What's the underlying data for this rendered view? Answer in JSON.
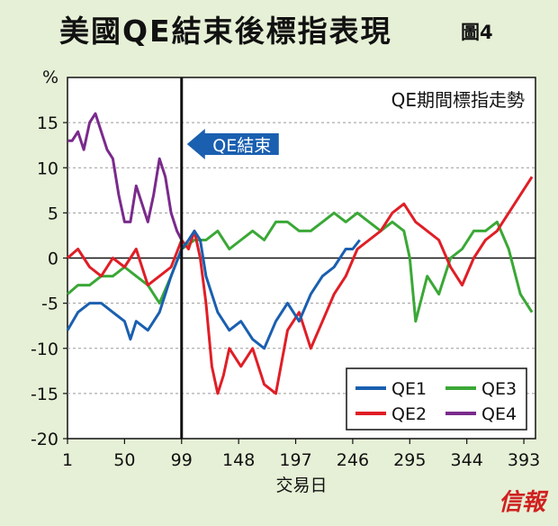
{
  "header": {
    "title": "美國QE結束後標指表現",
    "figure_label": "圖4"
  },
  "colors": {
    "background": "#e6f0d6",
    "QE1": "#1a5fb0",
    "QE2": "#e01e26",
    "QE3": "#3aa836",
    "QE4": "#7a2a8c",
    "marker_line": "#111111",
    "arrow_fill": "#1a5fb0"
  },
  "watermark": "信報",
  "chart_data": {
    "type": "line",
    "title": "美國QE結束後標指表現",
    "subtitle": "QE期間標指走勢",
    "ylabel": "%",
    "xlabel": "交易日",
    "xlim": [
      1,
      403
    ],
    "ylim": [
      -20,
      20
    ],
    "xticks": [
      1,
      50,
      99,
      148,
      197,
      246,
      295,
      344,
      393
    ],
    "yticks": [
      15,
      10,
      5,
      0,
      -5,
      -10,
      -15,
      -20
    ],
    "grid": "horizontal-dashed",
    "legend_position": "bottom-right",
    "annotation": {
      "text": "QE結束",
      "x": 99
    },
    "series": [
      {
        "name": "QE1",
        "x": [
          1,
          10,
          20,
          30,
          40,
          50,
          55,
          60,
          70,
          80,
          90,
          99,
          105,
          110,
          115,
          120,
          130,
          140,
          150,
          160,
          170,
          180,
          190,
          200,
          210,
          220,
          230,
          240,
          246,
          252
        ],
        "values": [
          -8,
          -6,
          -5,
          -5,
          -6,
          -7,
          -9,
          -7,
          -8,
          -6,
          -2,
          1,
          2,
          3,
          2,
          -2,
          -6,
          -8,
          -7,
          -9,
          -10,
          -7,
          -5,
          -7,
          -4,
          -2,
          -1,
          1,
          1,
          2
        ]
      },
      {
        "name": "QE2",
        "x": [
          1,
          10,
          20,
          30,
          40,
          50,
          60,
          70,
          80,
          90,
          99,
          105,
          110,
          115,
          120,
          125,
          130,
          135,
          140,
          150,
          160,
          170,
          180,
          190,
          200,
          210,
          220,
          230,
          240,
          250,
          260,
          270,
          280,
          290,
          300,
          310,
          320,
          330,
          340,
          350,
          360,
          370,
          380,
          390,
          400
        ],
        "values": [
          0,
          1,
          -1,
          -2,
          0,
          -1,
          1,
          -3,
          -2,
          -1,
          2,
          1,
          3,
          0,
          -5,
          -12,
          -15,
          -13,
          -10,
          -12,
          -10,
          -14,
          -15,
          -8,
          -6,
          -10,
          -7,
          -4,
          -2,
          1,
          2,
          3,
          5,
          6,
          4,
          3,
          2,
          -1,
          -3,
          0,
          2,
          3,
          5,
          7,
          9
        ]
      },
      {
        "name": "QE3",
        "x": [
          1,
          10,
          20,
          30,
          40,
          50,
          60,
          70,
          80,
          90,
          99,
          110,
          120,
          130,
          140,
          150,
          160,
          170,
          180,
          190,
          200,
          210,
          220,
          230,
          240,
          250,
          260,
          270,
          280,
          290,
          295,
          300,
          310,
          320,
          330,
          340,
          350,
          360,
          370,
          380,
          390,
          400
        ],
        "values": [
          -4,
          -3,
          -3,
          -2,
          -2,
          -1,
          -2,
          -3,
          -5,
          -2,
          1,
          2,
          2,
          3,
          1,
          2,
          3,
          2,
          4,
          4,
          3,
          3,
          4,
          5,
          4,
          5,
          4,
          3,
          4,
          3,
          0,
          -7,
          -2,
          -4,
          0,
          1,
          3,
          3,
          4,
          1,
          -4,
          -6
        ]
      },
      {
        "name": "QE4",
        "x": [
          1,
          5,
          10,
          15,
          20,
          25,
          30,
          35,
          40,
          45,
          50,
          55,
          60,
          65,
          70,
          75,
          80,
          85,
          90,
          95,
          99
        ],
        "values": [
          13,
          13,
          14,
          12,
          15,
          16,
          14,
          12,
          11,
          7,
          4,
          4,
          8,
          6,
          4,
          7,
          11,
          9,
          5,
          3,
          2
        ]
      }
    ]
  }
}
